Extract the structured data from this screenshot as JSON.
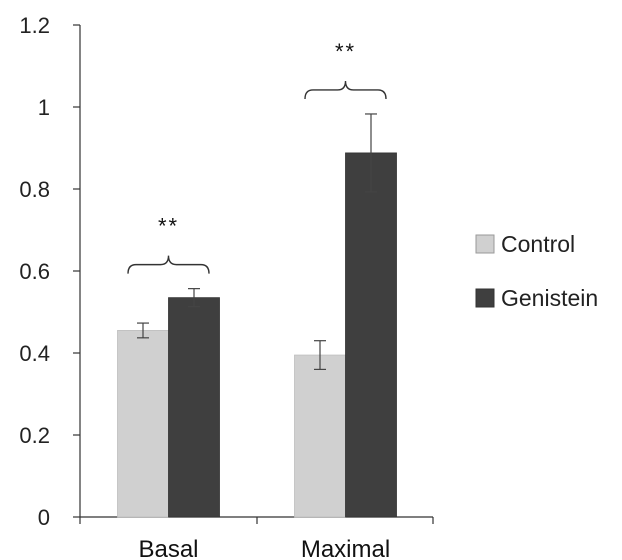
{
  "chart_data": {
    "type": "bar",
    "categories": [
      "Basal",
      "Maximal"
    ],
    "series": [
      {
        "name": "Control",
        "values": [
          0.455,
          0.395
        ],
        "errors": [
          0.018,
          0.035
        ],
        "color": "#d0d0d0"
      },
      {
        "name": "Genistein",
        "values": [
          0.535,
          0.888
        ],
        "errors": [
          0.022,
          0.095
        ],
        "color": "#3f3f3f"
      }
    ],
    "ylim": [
      0,
      1.2
    ],
    "yticks": [
      {
        "value": 0,
        "label": "0"
      },
      {
        "value": 0.2,
        "label": "0.2"
      },
      {
        "value": 0.4,
        "label": "0.4"
      },
      {
        "value": 0.6,
        "label": "0.6"
      },
      {
        "value": 0.8,
        "label": "0.8"
      },
      {
        "value": 1,
        "label": "1"
      },
      {
        "value": 1.2,
        "label": "1.2"
      }
    ],
    "annotations": [
      {
        "category_index": 0,
        "text": "**"
      },
      {
        "category_index": 1,
        "text": "**"
      }
    ],
    "grid": false,
    "legend_position": "right"
  }
}
